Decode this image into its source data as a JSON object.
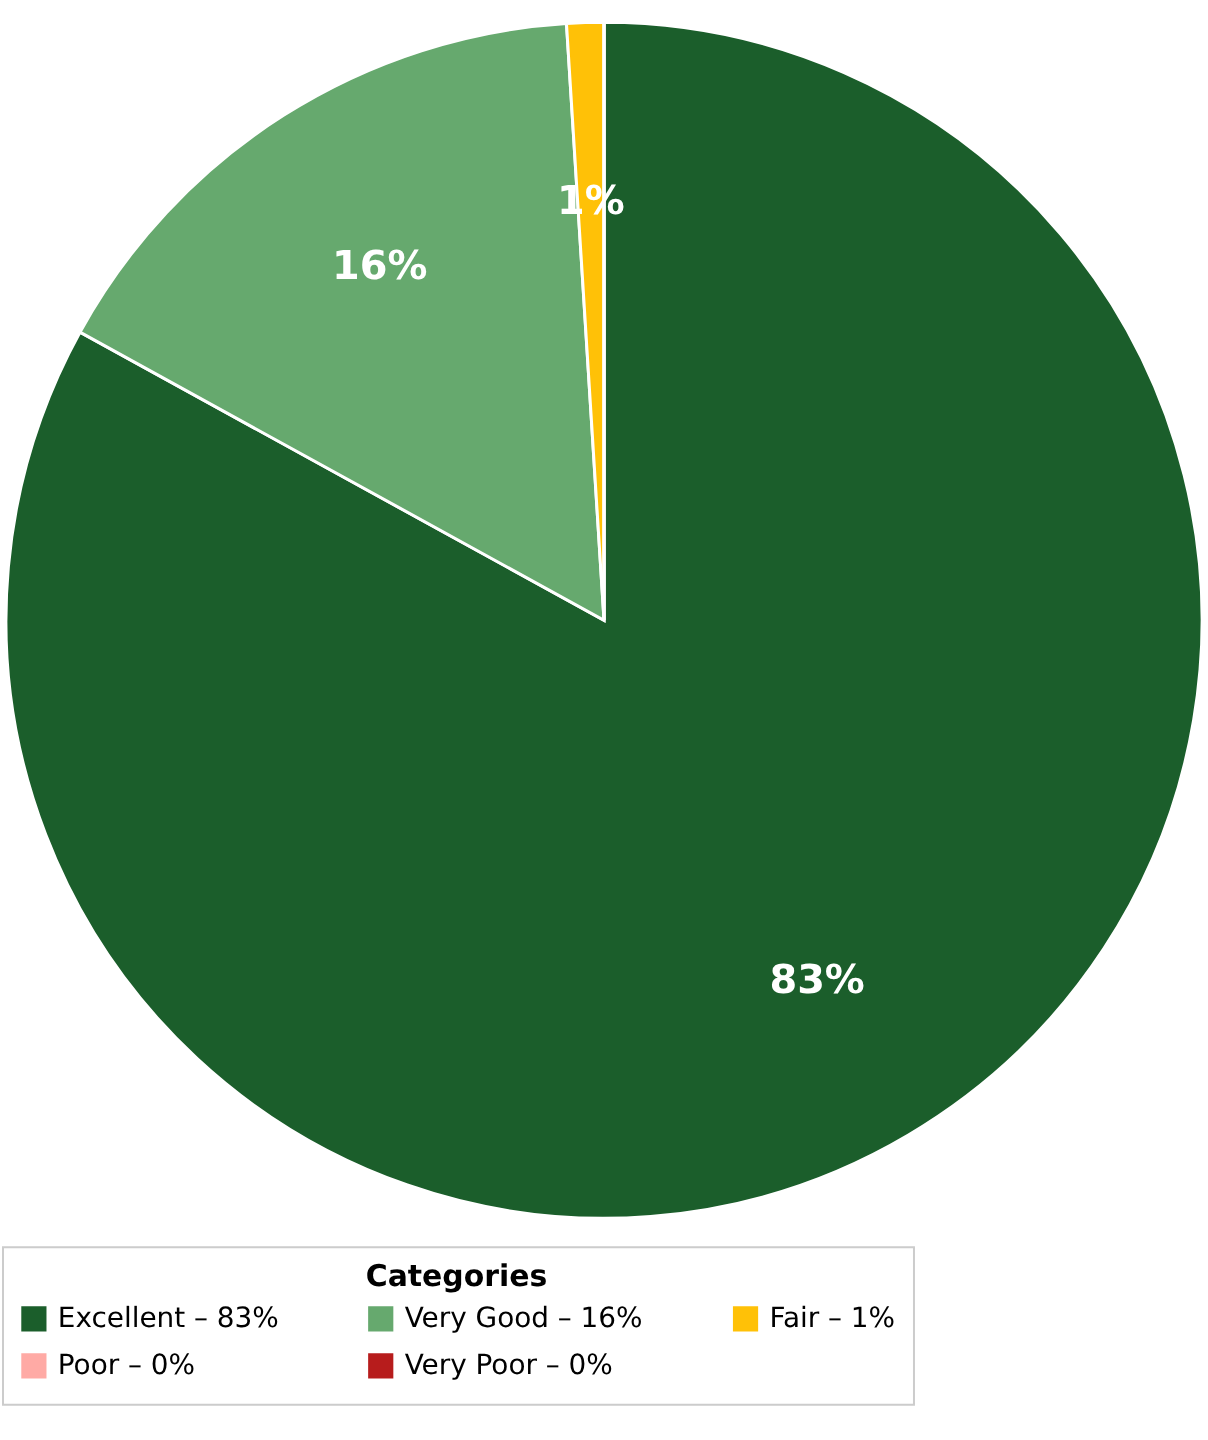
{
  "chart_data": {
    "type": "pie",
    "legend_title": "Categories",
    "legend": "bottom",
    "categories": [
      "Excellent – 83%",
      "Very Good – 16%",
      "Fair – 1%",
      "Poor – 0%",
      "Very Poor – 0%"
    ],
    "values": [
      83,
      16,
      1,
      0,
      0
    ],
    "colors": [
      "#1b5e2b",
      "#66a96e",
      "#ffc107",
      "#ffaaa5",
      "#b71c1c"
    ],
    "value_labels": [
      "83%",
      "16%",
      "1%",
      null,
      null
    ]
  }
}
